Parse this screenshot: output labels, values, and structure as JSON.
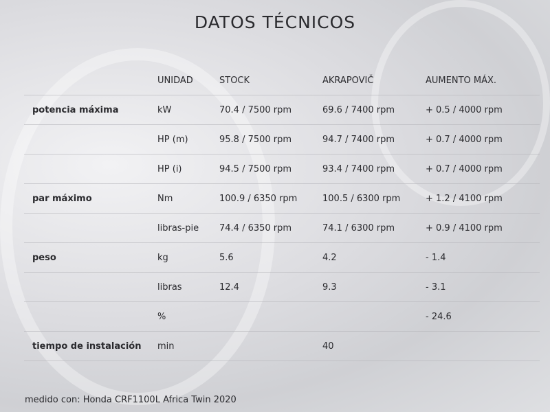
{
  "title": "DATOS TÉCNICOS",
  "headers": [
    "",
    "UNIDAD",
    "STOCK",
    "AKRAPOVIČ",
    "AUMENTO MÁX."
  ],
  "rows": [
    [
      "potencia máxima",
      "kW",
      "70.4 / 7500 rpm",
      "69.6 / 7400 rpm",
      "+ 0.5 / 4000 rpm"
    ],
    [
      "",
      "HP (m)",
      "95.8 / 7500 rpm",
      "94.7 / 7400 rpm",
      "+ 0.7 / 4000 rpm"
    ],
    [
      "",
      "HP (i)",
      "94.5 / 7500 rpm",
      "93.4 / 7400 rpm",
      "+ 0.7 / 4000 rpm"
    ],
    [
      "par máximo",
      "Nm",
      "100.9 / 6350 rpm",
      "100.5 / 6300 rpm",
      "+ 1.2 / 4100 rpm"
    ],
    [
      "",
      "libras-pie",
      "74.4 / 6350 rpm",
      "74.1 / 6300 rpm",
      "+ 0.9 / 4100 rpm"
    ],
    [
      "peso",
      "kg",
      "5.6",
      "4.2",
      "- 1.4"
    ],
    [
      "",
      "libras",
      "12.4",
      "9.3",
      "- 3.1"
    ],
    [
      "",
      "%",
      "",
      "",
      "- 24.6"
    ],
    [
      "tiempo de instalación",
      "min",
      "",
      "40",
      ""
    ]
  ],
  "footnote": "medido con: Honda CRF1100L Africa Twin 2020"
}
